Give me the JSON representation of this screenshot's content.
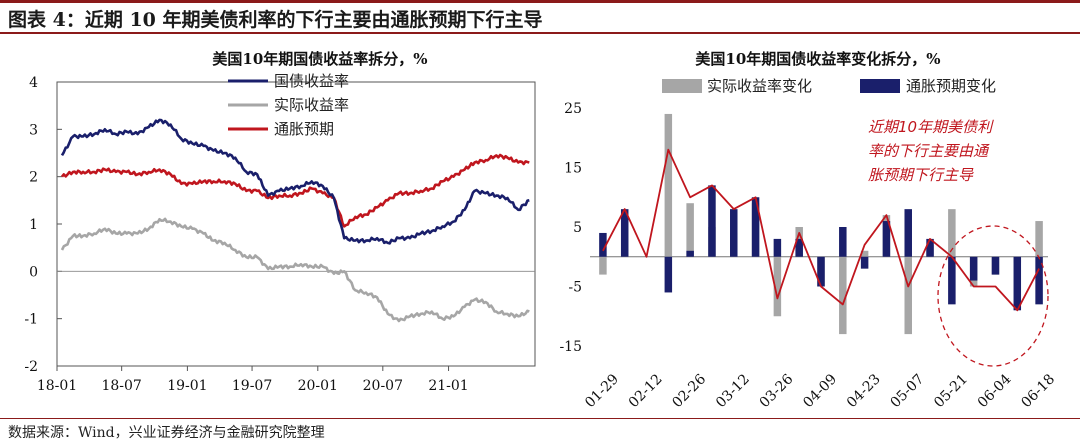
{
  "figure": {
    "title": "图表 4：近期 10 年期美债利率的下行主要由通胀预期下行主导",
    "source": "数据来源：Wind，兴业证券经济与金融研究院整理"
  },
  "colors": {
    "nominal": "#1a1f6b",
    "real": "#a6a6a6",
    "breakeven": "#c0161e",
    "frame_red": "#8b1a1a"
  },
  "chart_data": [
    {
      "type": "line",
      "title": "美国10年期国债收益率拆分，%",
      "xlabel": "",
      "ylabel": "",
      "ylim": [
        -2,
        4
      ],
      "yticks": [
        "4",
        "3",
        "2",
        "1",
        "0",
        "-1",
        "-2"
      ],
      "x_start": "2018-01-01",
      "x_end": "2021-08-31",
      "xticks": [
        "18-01",
        "18-07",
        "19-01",
        "19-07",
        "20-01",
        "20-07",
        "21-01"
      ],
      "legend_position": "top-center",
      "grid": false,
      "x": [
        "2018-01",
        "2018-02",
        "2018-03",
        "2018-04",
        "2018-05",
        "2018-06",
        "2018-07",
        "2018-08",
        "2018-09",
        "2018-10",
        "2018-11",
        "2018-12",
        "2019-01",
        "2019-02",
        "2019-03",
        "2019-04",
        "2019-05",
        "2019-06",
        "2019-07",
        "2019-08",
        "2019-09",
        "2019-10",
        "2019-11",
        "2019-12",
        "2020-01",
        "2020-02",
        "2020-03",
        "2020-04",
        "2020-05",
        "2020-06",
        "2020-07",
        "2020-08",
        "2020-09",
        "2020-10",
        "2020-11",
        "2020-12",
        "2021-01",
        "2021-02",
        "2021-03",
        "2021-04",
        "2021-05",
        "2021-06",
        "2021-07",
        "2021-08"
      ],
      "series": [
        {
          "name": "国债收益率",
          "color_key": "nominal",
          "values": [
            2.45,
            2.85,
            2.85,
            2.9,
            3.0,
            2.9,
            2.95,
            2.9,
            3.05,
            3.2,
            3.1,
            2.8,
            2.7,
            2.65,
            2.55,
            2.5,
            2.4,
            2.1,
            2.05,
            1.6,
            1.7,
            1.75,
            1.8,
            1.9,
            1.8,
            1.55,
            0.7,
            0.65,
            0.65,
            0.7,
            0.6,
            0.7,
            0.7,
            0.8,
            0.85,
            0.95,
            1.05,
            1.3,
            1.7,
            1.65,
            1.6,
            1.55,
            1.3,
            1.5
          ]
        },
        {
          "name": "实际收益率",
          "color_key": "real",
          "values": [
            0.45,
            0.75,
            0.75,
            0.8,
            0.9,
            0.8,
            0.8,
            0.8,
            0.9,
            1.1,
            1.05,
            0.95,
            0.9,
            0.8,
            0.65,
            0.6,
            0.45,
            0.3,
            0.3,
            0.05,
            0.1,
            0.1,
            0.15,
            0.1,
            0.1,
            -0.05,
            0.0,
            -0.4,
            -0.45,
            -0.55,
            -0.9,
            -1.05,
            -0.95,
            -0.9,
            -0.85,
            -1.0,
            -0.95,
            -0.75,
            -0.6,
            -0.65,
            -0.85,
            -0.9,
            -0.95,
            -0.85
          ]
        },
        {
          "name": "通胀预期",
          "color_key": "breakeven",
          "values": [
            2.0,
            2.1,
            2.1,
            2.1,
            2.15,
            2.1,
            2.1,
            2.05,
            2.1,
            2.15,
            2.05,
            1.85,
            1.85,
            1.9,
            1.9,
            1.9,
            1.85,
            1.7,
            1.7,
            1.55,
            1.6,
            1.6,
            1.65,
            1.75,
            1.65,
            1.55,
            0.95,
            1.15,
            1.2,
            1.35,
            1.5,
            1.65,
            1.65,
            1.7,
            1.75,
            1.9,
            2.0,
            2.15,
            2.3,
            2.35,
            2.45,
            2.4,
            2.3,
            2.3
          ]
        }
      ]
    },
    {
      "type": "bar",
      "title": "美国10年期国债收益率变化拆分，%",
      "xlabel": "",
      "ylabel": "",
      "ylim": [
        -15,
        25
      ],
      "yticks": [
        "25",
        "15",
        "5",
        "-5",
        "-15"
      ],
      "legend_position": "top",
      "grid": false,
      "categories": [
        "01-29",
        "02-05",
        "02-12",
        "02-19",
        "02-26",
        "03-05",
        "03-12",
        "03-19",
        "03-26",
        "04-02",
        "04-09",
        "04-16",
        "04-23",
        "04-30",
        "05-07",
        "05-14",
        "05-21",
        "05-28",
        "06-04",
        "06-11",
        "06-18"
      ],
      "xtick_labels": [
        "01-29",
        "02-12",
        "02-26",
        "03-12",
        "03-26",
        "04-09",
        "04-23",
        "05-07",
        "05-21",
        "06-04",
        "06-18"
      ],
      "series": [
        {
          "name": "实际收益率变化",
          "color_key": "real",
          "values": [
            -3,
            7,
            0,
            24,
            9,
            5,
            4,
            9,
            -10,
            5,
            -5,
            -13,
            1,
            7,
            -13,
            2,
            8,
            -5,
            -3,
            -1,
            6
          ]
        },
        {
          "name": "通胀预期变化",
          "color_key": "nominal",
          "values": [
            4,
            8,
            0,
            -6,
            1,
            12,
            8,
            10,
            3,
            3,
            -5,
            5,
            -2,
            6,
            8,
            3,
            -8,
            -4,
            -3,
            -9,
            -8
          ]
        }
      ],
      "total_line": {
        "color_key": "breakeven",
        "values": [
          1,
          8,
          0,
          18,
          10,
          12,
          8,
          10,
          -7,
          4,
          -5,
          -8,
          2,
          7,
          -5,
          3,
          0,
          -5,
          -5,
          -9,
          -2
        ]
      },
      "annotation": [
        "近期10年期美债利",
        "率的下行主要由通",
        "胀预期下行主导"
      ]
    }
  ]
}
